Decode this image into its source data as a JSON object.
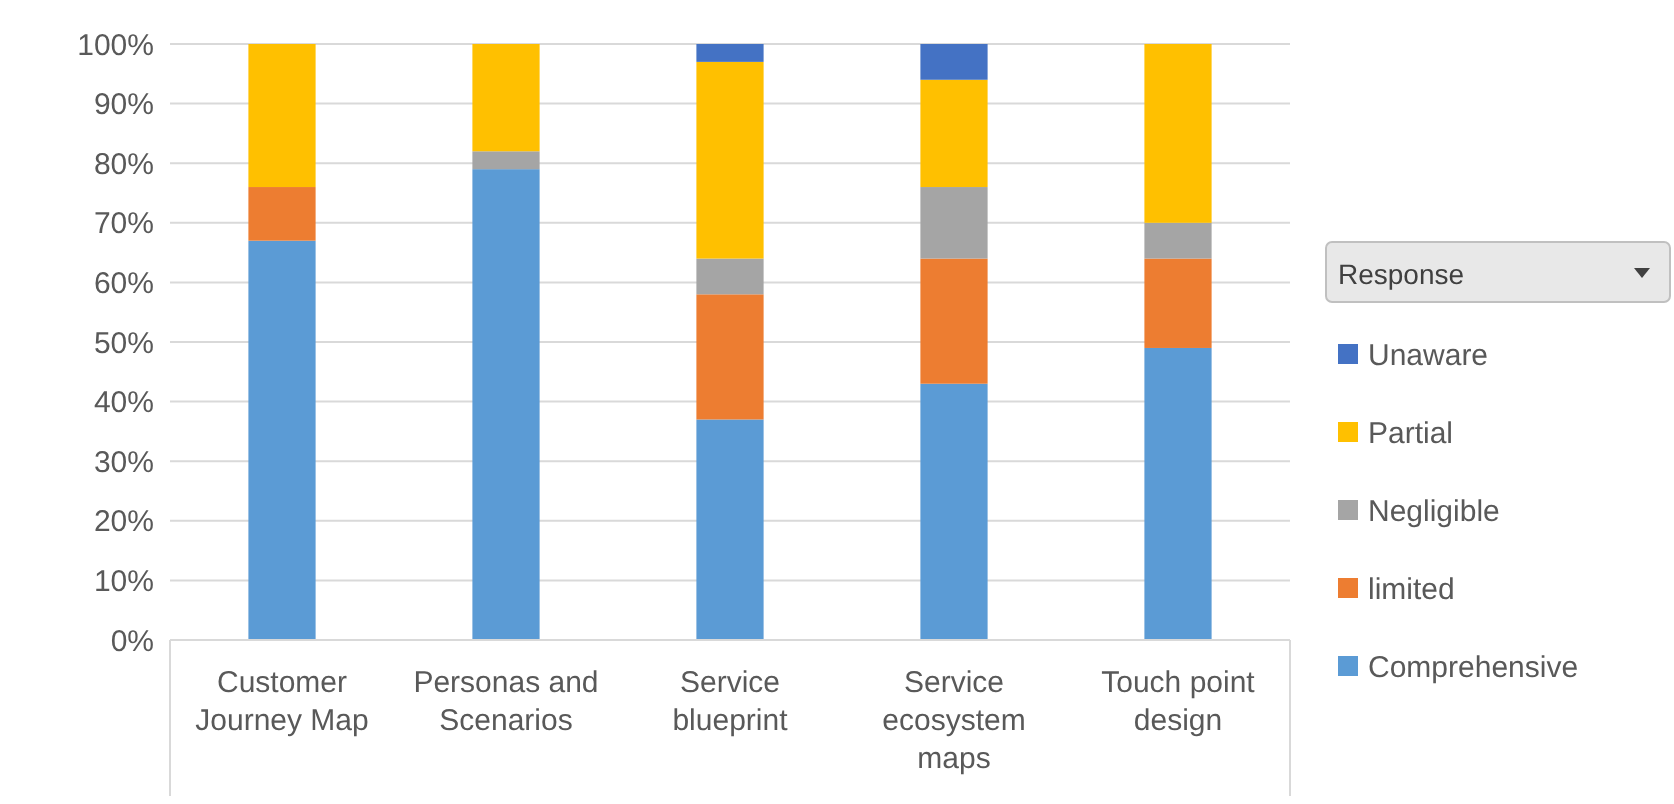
{
  "chart_data": {
    "type": "bar",
    "stacked": true,
    "legend_title": "Response",
    "legend": "right",
    "categories": [
      "Customer Journey Map",
      "Personas and Scenarios",
      "Service blueprint",
      "Service ecosystem maps",
      "Touch point design"
    ],
    "series": [
      {
        "name": "Comprehensive",
        "color": "#5b9bd5",
        "values": [
          67,
          79,
          37,
          43,
          49
        ]
      },
      {
        "name": "limited",
        "color": "#ed7d31",
        "values": [
          9,
          0,
          21,
          21,
          15
        ]
      },
      {
        "name": "Negligible",
        "color": "#a5a5a5",
        "values": [
          0,
          3,
          6,
          12,
          6
        ]
      },
      {
        "name": "Partial",
        "color": "#ffc000",
        "values": [
          24,
          18,
          33,
          18,
          30
        ]
      },
      {
        "name": "Unaware",
        "color": "#4472c4",
        "values": [
          0,
          0,
          3,
          6,
          0
        ]
      }
    ],
    "ylim": [
      0,
      100
    ],
    "yticks": [
      {
        "value": 0,
        "label": "0%"
      },
      {
        "value": 10,
        "label": "10%"
      },
      {
        "value": 20,
        "label": "20%"
      },
      {
        "value": 30,
        "label": "30%"
      },
      {
        "value": 40,
        "label": "40%"
      },
      {
        "value": 50,
        "label": "50%"
      },
      {
        "value": 60,
        "label": "60%"
      },
      {
        "value": 70,
        "label": "70%"
      },
      {
        "value": 80,
        "label": "80%"
      },
      {
        "value": 90,
        "label": "90%"
      },
      {
        "value": 100,
        "label": "100%"
      }
    ],
    "grid": "y"
  }
}
